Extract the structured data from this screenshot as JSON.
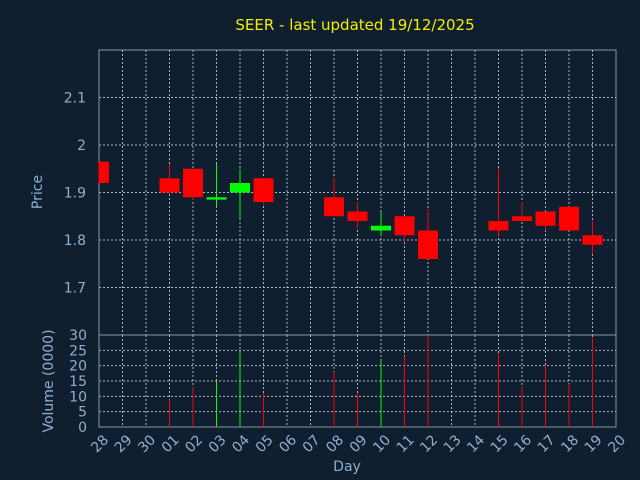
{
  "title": "SEER - last updated 19/12/2025",
  "colors": {
    "up": "#00ff00",
    "down": "#ff0000",
    "background": "#0f1f30",
    "title": "#f0f000",
    "tick": "#8fb0d0"
  },
  "chart_data": [
    {
      "type": "candlestick",
      "ylabel": "Price",
      "ylim": [
        1.6,
        2.2
      ],
      "yticks": [
        "1.7",
        "1.8",
        "1.9",
        "2",
        "2.1"
      ],
      "categories": [
        "28",
        "29",
        "30",
        "01",
        "02",
        "03",
        "04",
        "05",
        "06",
        "07",
        "08",
        "09",
        "10",
        "11",
        "12",
        "13",
        "14",
        "15",
        "16",
        "17",
        "18",
        "19",
        "20"
      ],
      "candles": [
        {
          "x": "28",
          "open": 1.965,
          "close": 1.92,
          "high": 1.965,
          "low": 1.92
        },
        {
          "x": "01",
          "open": 1.93,
          "close": 1.9,
          "high": 1.96,
          "low": 1.9
        },
        {
          "x": "02",
          "open": 1.95,
          "close": 1.89,
          "high": 1.95,
          "low": 1.885
        },
        {
          "x": "03",
          "open": 1.885,
          "close": 1.89,
          "high": 1.96,
          "low": 1.87
        },
        {
          "x": "04",
          "open": 1.9,
          "close": 1.92,
          "high": 1.95,
          "low": 1.845
        },
        {
          "x": "05",
          "open": 1.93,
          "close": 1.88,
          "high": 1.93,
          "low": 1.875
        },
        {
          "x": "08",
          "open": 1.89,
          "close": 1.85,
          "high": 1.93,
          "low": 1.85
        },
        {
          "x": "09",
          "open": 1.86,
          "close": 1.84,
          "high": 1.88,
          "low": 1.825
        },
        {
          "x": "10",
          "open": 1.82,
          "close": 1.83,
          "high": 1.86,
          "low": 1.81
        },
        {
          "x": "11",
          "open": 1.85,
          "close": 1.81,
          "high": 1.85,
          "low": 1.795
        },
        {
          "x": "12",
          "open": 1.82,
          "close": 1.76,
          "high": 1.865,
          "low": 1.76
        },
        {
          "x": "15",
          "open": 1.84,
          "close": 1.82,
          "high": 1.95,
          "low": 1.81
        },
        {
          "x": "16",
          "open": 1.85,
          "close": 1.84,
          "high": 1.88,
          "low": 1.84
        },
        {
          "x": "17",
          "open": 1.86,
          "close": 1.83,
          "high": 1.86,
          "low": 1.82
        },
        {
          "x": "18",
          "open": 1.87,
          "close": 1.82,
          "high": 1.87,
          "low": 1.82
        },
        {
          "x": "19",
          "open": 1.81,
          "close": 1.79,
          "high": 1.84,
          "low": 1.77
        }
      ]
    },
    {
      "type": "bar",
      "ylabel": "Volume (0000)",
      "xlabel": "Day",
      "ylim": [
        0,
        30
      ],
      "yticks": [
        "0",
        "5",
        "10",
        "15",
        "20",
        "25",
        "30"
      ],
      "bars": [
        {
          "x": "01",
          "value": 9,
          "direction": "down"
        },
        {
          "x": "02",
          "value": 13,
          "direction": "down"
        },
        {
          "x": "03",
          "value": 15,
          "direction": "up"
        },
        {
          "x": "04",
          "value": 24,
          "direction": "up"
        },
        {
          "x": "05",
          "value": 11,
          "direction": "down"
        },
        {
          "x": "08",
          "value": 18,
          "direction": "down"
        },
        {
          "x": "09",
          "value": 11,
          "direction": "down"
        },
        {
          "x": "10",
          "value": 22,
          "direction": "up"
        },
        {
          "x": "11",
          "value": 23,
          "direction": "down"
        },
        {
          "x": "12",
          "value": 30,
          "direction": "down"
        },
        {
          "x": "15",
          "value": 24,
          "direction": "down"
        },
        {
          "x": "16",
          "value": 13,
          "direction": "down"
        },
        {
          "x": "17",
          "value": 20,
          "direction": "down"
        },
        {
          "x": "18",
          "value": 14,
          "direction": "down"
        },
        {
          "x": "19",
          "value": 29,
          "direction": "down"
        }
      ]
    }
  ]
}
